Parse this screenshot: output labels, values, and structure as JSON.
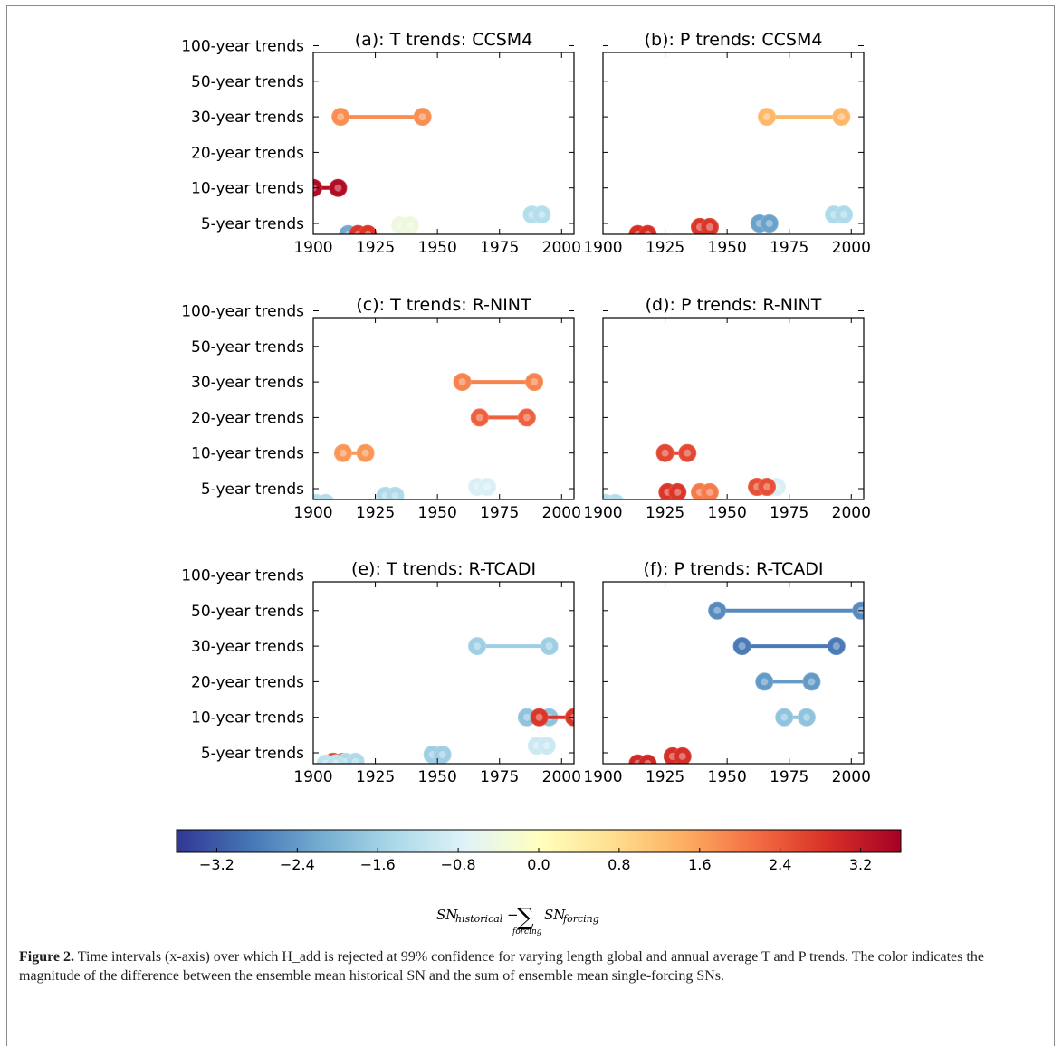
{
  "colorbar": {
    "ticks": [
      "−3.2",
      "−2.4",
      "−1.6",
      "−0.8",
      "0.0",
      "0.8",
      "1.6",
      "2.4",
      "3.2"
    ],
    "min": -3.6,
    "max": 3.6,
    "colors": [
      "#313695",
      "#4575b4",
      "#74add1",
      "#abd9e9",
      "#e0f3f8",
      "#ffffbf",
      "#fee090",
      "#fdae61",
      "#f46d43",
      "#d73027",
      "#a50026"
    ]
  },
  "caption": {
    "label": "Figure 2.",
    "text": "Time intervals (x-axis) over which H_add is rejected at 99% confidence for varying length global and annual average T and P trends. The color indicates the magnitude of the difference between the ensemble mean historical SN and the sum of ensemble mean single-forcing SNs."
  },
  "chart_data": [
    {
      "panel": "a",
      "type": "scatter",
      "title": "(a): T trends: CCSM4",
      "xlim": [
        1900,
        2005
      ],
      "xticks": [
        1900,
        1925,
        1950,
        1975,
        2000
      ],
      "categories": [
        "5-year trends",
        "10-year trends",
        "20-year trends",
        "30-year trends",
        "50-year trends",
        "100-year trends"
      ],
      "segments": [
        {
          "category": "30-year trends",
          "offset": 0,
          "x_start": 1911,
          "x_end": 1944,
          "value": 1.8
        },
        {
          "category": "10-year trends",
          "offset": 0,
          "x_start": 1900,
          "x_end": 1910,
          "value": 3.4
        },
        {
          "category": "5-year trends",
          "offset": 0.25,
          "x_start": 1988,
          "x_end": 1992,
          "value": -1.3
        },
        {
          "category": "5-year trends",
          "offset": -0.05,
          "x_start": 1935,
          "x_end": 1939,
          "value": -0.4
        },
        {
          "category": "5-year trends",
          "offset": -0.3,
          "x_start": 1914,
          "x_end": 1918,
          "value": -2.2
        },
        {
          "category": "5-year trends",
          "offset": -0.3,
          "x_start": 1918,
          "x_end": 1922,
          "value": 2.8
        }
      ]
    },
    {
      "panel": "b",
      "type": "scatter",
      "title": "(b): P trends: CCSM4",
      "xlim": [
        1900,
        2005
      ],
      "xticks": [
        1900,
        1925,
        1950,
        1975,
        2000
      ],
      "categories": [
        "5-year trends",
        "10-year trends",
        "20-year trends",
        "30-year trends",
        "50-year trends",
        "100-year trends"
      ],
      "segments": [
        {
          "category": "30-year trends",
          "offset": 0,
          "x_start": 1966,
          "x_end": 1996,
          "value": 1.3
        },
        {
          "category": "5-year trends",
          "offset": 0.25,
          "x_start": 1993,
          "x_end": 1997,
          "value": -1.4
        },
        {
          "category": "5-year trends",
          "offset": 0,
          "x_start": 1963,
          "x_end": 1967,
          "value": -2.3
        },
        {
          "category": "5-year trends",
          "offset": -0.1,
          "x_start": 1939,
          "x_end": 1943,
          "value": 2.8
        },
        {
          "category": "5-year trends",
          "offset": -0.3,
          "x_start": 1914,
          "x_end": 1918,
          "value": 2.9
        }
      ]
    },
    {
      "panel": "c",
      "type": "scatter",
      "title": "(c): T trends: R-NINT",
      "xlim": [
        1900,
        2005
      ],
      "xticks": [
        1900,
        1925,
        1950,
        1975,
        2000
      ],
      "categories": [
        "5-year trends",
        "10-year trends",
        "20-year trends",
        "30-year trends",
        "50-year trends",
        "100-year trends"
      ],
      "segments": [
        {
          "category": "30-year trends",
          "offset": 0,
          "x_start": 1960,
          "x_end": 1989,
          "value": 1.9
        },
        {
          "category": "20-year trends",
          "offset": 0,
          "x_start": 1967,
          "x_end": 1986,
          "value": 2.3
        },
        {
          "category": "10-year trends",
          "offset": 0,
          "x_start": 1912,
          "x_end": 1921,
          "value": 1.7
        },
        {
          "category": "5-year trends",
          "offset": 0.05,
          "x_start": 1966,
          "x_end": 1970,
          "value": -0.8
        },
        {
          "category": "5-year trends",
          "offset": -0.2,
          "x_start": 1929,
          "x_end": 1933,
          "value": -1.4
        },
        {
          "category": "5-year trends",
          "offset": -0.4,
          "x_start": 1901,
          "x_end": 1905,
          "value": -1.3
        }
      ]
    },
    {
      "panel": "d",
      "type": "scatter",
      "title": "(d): P trends: R-NINT",
      "xlim": [
        1900,
        2005
      ],
      "xticks": [
        1900,
        1925,
        1950,
        1975,
        2000
      ],
      "categories": [
        "5-year trends",
        "10-year trends",
        "20-year trends",
        "30-year trends",
        "50-year trends",
        "100-year trends"
      ],
      "segments": [
        {
          "category": "10-year trends",
          "offset": 0,
          "x_start": 1925,
          "x_end": 1934,
          "value": 2.6
        },
        {
          "category": "5-year trends",
          "offset": 0.05,
          "x_start": 1966,
          "x_end": 1970,
          "value": -0.8
        },
        {
          "category": "5-year trends",
          "offset": 0.05,
          "x_start": 1962,
          "x_end": 1966,
          "value": 2.5
        },
        {
          "category": "5-year trends",
          "offset": -0.1,
          "x_start": 1939,
          "x_end": 1943,
          "value": 2.0
        },
        {
          "category": "5-year trends",
          "offset": -0.1,
          "x_start": 1926,
          "x_end": 1930,
          "value": 2.8
        },
        {
          "category": "5-year trends",
          "offset": -0.4,
          "x_start": 1901,
          "x_end": 1905,
          "value": -1.3
        }
      ]
    },
    {
      "panel": "e",
      "type": "scatter",
      "title": "(e): T trends: R-TCADI",
      "xlim": [
        1900,
        2005
      ],
      "xticks": [
        1900,
        1925,
        1950,
        1975,
        2000
      ],
      "categories": [
        "5-year trends",
        "10-year trends",
        "20-year trends",
        "30-year trends",
        "50-year trends",
        "100-year trends"
      ],
      "segments": [
        {
          "category": "30-year trends",
          "offset": 0,
          "x_start": 1966,
          "x_end": 1995,
          "value": -1.6
        },
        {
          "category": "10-year trends",
          "offset": 0,
          "x_start": 1986,
          "x_end": 1995,
          "value": -1.8
        },
        {
          "category": "10-year trends",
          "offset": 0,
          "x_start": 1991,
          "x_end": 2005,
          "value": 2.8
        },
        {
          "category": "5-year trends",
          "offset": 0.2,
          "x_start": 1990,
          "x_end": 1994,
          "value": -1.0
        },
        {
          "category": "5-year trends",
          "offset": -0.05,
          "x_start": 1948,
          "x_end": 1952,
          "value": -1.6
        },
        {
          "category": "5-year trends",
          "offset": -0.25,
          "x_start": 1908,
          "x_end": 1912,
          "value": 2.6
        },
        {
          "category": "5-year trends",
          "offset": -0.25,
          "x_start": 1913,
          "x_end": 1917,
          "value": -1.4
        },
        {
          "category": "5-year trends",
          "offset": -0.3,
          "x_start": 1905,
          "x_end": 1909,
          "value": -1.2
        }
      ]
    },
    {
      "panel": "f",
      "type": "scatter",
      "title": "(f): P trends: R-TCADI",
      "xlim": [
        1900,
        2005
      ],
      "xticks": [
        1900,
        1925,
        1950,
        1975,
        2000
      ],
      "categories": [
        "5-year trends",
        "10-year trends",
        "20-year trends",
        "30-year trends",
        "50-year trends",
        "100-year trends"
      ],
      "segments": [
        {
          "category": "50-year trends",
          "offset": 0,
          "x_start": 1946,
          "x_end": 2004,
          "value": -2.6
        },
        {
          "category": "30-year trends",
          "offset": 0,
          "x_start": 1956,
          "x_end": 1994,
          "value": -2.8
        },
        {
          "category": "20-year trends",
          "offset": 0,
          "x_start": 1965,
          "x_end": 1984,
          "value": -2.4
        },
        {
          "category": "10-year trends",
          "offset": 0,
          "x_start": 1973,
          "x_end": 1982,
          "value": -1.8
        },
        {
          "category": "5-year trends",
          "offset": -0.1,
          "x_start": 1928,
          "x_end": 1932,
          "value": 2.9
        },
        {
          "category": "5-year trends",
          "offset": -0.3,
          "x_start": 1914,
          "x_end": 1918,
          "value": 3.0
        }
      ]
    }
  ]
}
